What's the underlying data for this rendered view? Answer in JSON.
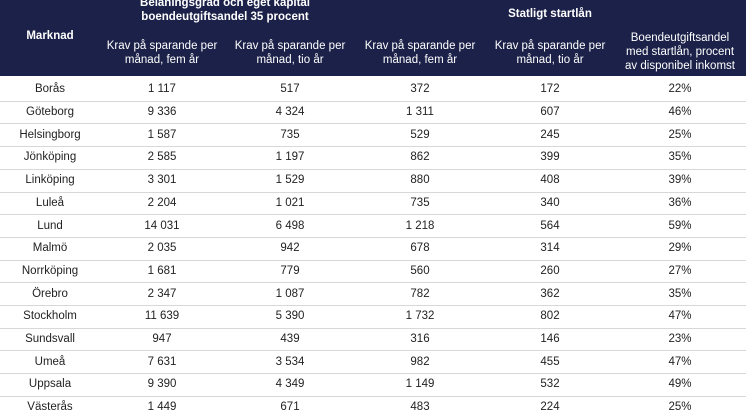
{
  "table": {
    "header": {
      "market": "Marknad",
      "group1": [
        "Belåningsgrad och eget kapital",
        "boendeutgiftsandel 35 procent"
      ],
      "group2": "Statligt startlån",
      "columns": [
        [
          "Krav på sparande per",
          "månad, fem år"
        ],
        [
          "Krav på sparande per",
          "månad, tio år"
        ],
        [
          "Krav på sparande per",
          "månad, fem år"
        ],
        [
          "Krav på sparande per",
          "månad, tio år"
        ],
        [
          "Boendeutgiftsandel",
          "med startlån, procent",
          "av disponibel inkomst"
        ]
      ]
    },
    "rows": [
      [
        "Borås",
        "1 117",
        "517",
        "372",
        "172",
        "22%"
      ],
      [
        "Göteborg",
        "9 336",
        "4 324",
        "1 311",
        "607",
        "46%"
      ],
      [
        "Helsingborg",
        "1 587",
        "735",
        "529",
        "245",
        "25%"
      ],
      [
        "Jönköping",
        "2 585",
        "1 197",
        "862",
        "399",
        "35%"
      ],
      [
        "Linköping",
        "3 301",
        "1 529",
        "880",
        "408",
        "39%"
      ],
      [
        "Luleå",
        "2 204",
        "1 021",
        "735",
        "340",
        "36%"
      ],
      [
        "Lund",
        "14 031",
        "6 498",
        "1 218",
        "564",
        "59%"
      ],
      [
        "Malmö",
        "2 035",
        "942",
        "678",
        "314",
        "29%"
      ],
      [
        "Norrköping",
        "1 681",
        "779",
        "560",
        "260",
        "27%"
      ],
      [
        "Örebro",
        "2 347",
        "1 087",
        "782",
        "362",
        "35%"
      ],
      [
        "Stockholm",
        "11 639",
        "5 390",
        "1 732",
        "802",
        "47%"
      ],
      [
        "Sundsvall",
        "947",
        "439",
        "316",
        "146",
        "23%"
      ],
      [
        "Umeå",
        "7 631",
        "3 534",
        "982",
        "455",
        "47%"
      ],
      [
        "Uppsala",
        "9 390",
        "4 349",
        "1 149",
        "532",
        "49%"
      ],
      [
        "Västerås",
        "1 449",
        "671",
        "483",
        "224",
        "25%"
      ]
    ]
  }
}
